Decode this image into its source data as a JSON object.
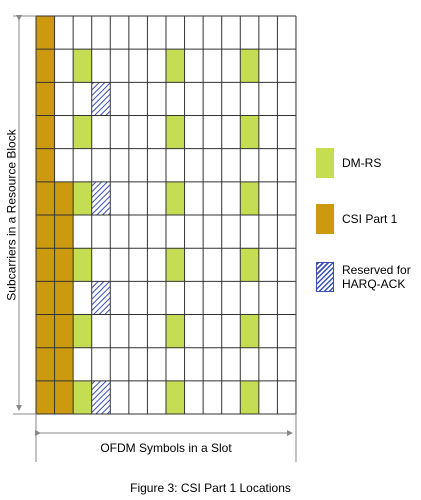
{
  "y_axis_label": "Subcarriers in a Resource Block",
  "x_axis_label": "OFDM Symbols in a Slot",
  "caption": "Figure 3: CSI Part 1 Locations",
  "grid": {
    "rows": 12,
    "cols": 14,
    "cells": [
      {
        "row": 0,
        "col": 0,
        "type": "csi"
      },
      {
        "row": 1,
        "col": 0,
        "type": "csi"
      },
      {
        "row": 2,
        "col": 0,
        "type": "csi"
      },
      {
        "row": 3,
        "col": 0,
        "type": "csi"
      },
      {
        "row": 4,
        "col": 0,
        "type": "csi"
      },
      {
        "row": 5,
        "col": 0,
        "type": "csi"
      },
      {
        "row": 6,
        "col": 0,
        "type": "csi"
      },
      {
        "row": 7,
        "col": 0,
        "type": "csi"
      },
      {
        "row": 8,
        "col": 0,
        "type": "csi"
      },
      {
        "row": 9,
        "col": 0,
        "type": "csi"
      },
      {
        "row": 10,
        "col": 0,
        "type": "csi"
      },
      {
        "row": 11,
        "col": 0,
        "type": "csi"
      },
      {
        "row": 5,
        "col": 1,
        "type": "csi"
      },
      {
        "row": 6,
        "col": 1,
        "type": "csi"
      },
      {
        "row": 7,
        "col": 1,
        "type": "csi"
      },
      {
        "row": 8,
        "col": 1,
        "type": "csi"
      },
      {
        "row": 9,
        "col": 1,
        "type": "csi"
      },
      {
        "row": 10,
        "col": 1,
        "type": "csi"
      },
      {
        "row": 11,
        "col": 1,
        "type": "csi"
      },
      {
        "row": 1,
        "col": 2,
        "type": "dmrs"
      },
      {
        "row": 3,
        "col": 2,
        "type": "dmrs"
      },
      {
        "row": 5,
        "col": 2,
        "type": "dmrs"
      },
      {
        "row": 7,
        "col": 2,
        "type": "dmrs"
      },
      {
        "row": 9,
        "col": 2,
        "type": "dmrs"
      },
      {
        "row": 11,
        "col": 2,
        "type": "dmrs"
      },
      {
        "row": 1,
        "col": 7,
        "type": "dmrs"
      },
      {
        "row": 3,
        "col": 7,
        "type": "dmrs"
      },
      {
        "row": 5,
        "col": 7,
        "type": "dmrs"
      },
      {
        "row": 7,
        "col": 7,
        "type": "dmrs"
      },
      {
        "row": 9,
        "col": 7,
        "type": "dmrs"
      },
      {
        "row": 11,
        "col": 7,
        "type": "dmrs"
      },
      {
        "row": 1,
        "col": 11,
        "type": "dmrs"
      },
      {
        "row": 3,
        "col": 11,
        "type": "dmrs"
      },
      {
        "row": 5,
        "col": 11,
        "type": "dmrs"
      },
      {
        "row": 7,
        "col": 11,
        "type": "dmrs"
      },
      {
        "row": 9,
        "col": 11,
        "type": "dmrs"
      },
      {
        "row": 11,
        "col": 11,
        "type": "dmrs"
      },
      {
        "row": 2,
        "col": 3,
        "type": "harq"
      },
      {
        "row": 5,
        "col": 3,
        "type": "harq"
      },
      {
        "row": 8,
        "col": 3,
        "type": "harq"
      },
      {
        "row": 11,
        "col": 3,
        "type": "harq"
      }
    ]
  },
  "legend": [
    {
      "key": "dmrs",
      "label": "DM-RS"
    },
    {
      "key": "csi",
      "label": "CSI Part 1"
    },
    {
      "key": "harq",
      "label": "Reserved for HARQ-ACK"
    }
  ],
  "colors": {
    "dmrs": "#c5dd53",
    "csi": "#cc9a0f",
    "harq_stripe": "#3b4fb8",
    "grid_line": "#333333",
    "arrow": "#888888"
  }
}
